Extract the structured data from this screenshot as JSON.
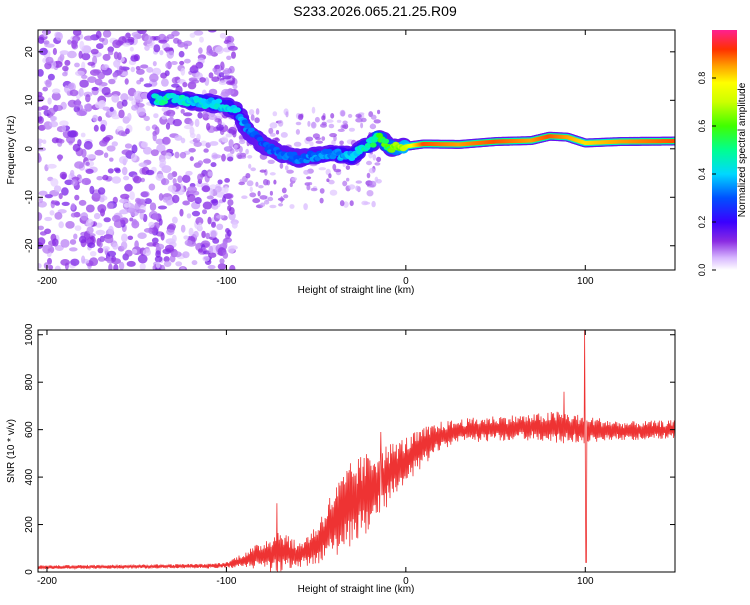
{
  "title": "S233.2026.065.21.25.R09",
  "chart_data": [
    {
      "type": "heatmap",
      "xlabel": "Height of straight line (km)",
      "ylabel": "Frequency (Hz)",
      "xlim": [
        -205,
        150
      ],
      "ylim": [
        -25,
        24.5
      ],
      "xticks": [
        -200,
        -100,
        0,
        100
      ],
      "yticks": [
        -20,
        -10,
        0,
        10,
        20
      ],
      "colorbar": {
        "label": "Normalized spectral amplitude",
        "range": [
          0,
          1
        ],
        "ticks": [
          0.0,
          0.2,
          0.4,
          0.6,
          0.8
        ],
        "tick_labels": [
          "0.0",
          "0.2",
          "0.4",
          "0.6",
          "0.8"
        ]
      },
      "ridge": [
        {
          "x": -140,
          "y": 10.3,
          "a": 0.45
        },
        {
          "x": -130,
          "y": 10.2,
          "a": 0.45
        },
        {
          "x": -118,
          "y": 9.8,
          "a": 0.4
        },
        {
          "x": -105,
          "y": 9.2,
          "a": 0.4
        },
        {
          "x": -95,
          "y": 8.2,
          "a": 0.38
        },
        {
          "x": -88,
          "y": 4.0,
          "a": 0.3
        },
        {
          "x": -80,
          "y": 1.0,
          "a": 0.28
        },
        {
          "x": -70,
          "y": -1.0,
          "a": 0.3
        },
        {
          "x": -60,
          "y": -2.0,
          "a": 0.3
        },
        {
          "x": -50,
          "y": -1.5,
          "a": 0.32
        },
        {
          "x": -40,
          "y": -1.0,
          "a": 0.35
        },
        {
          "x": -30,
          "y": -1.5,
          "a": 0.38
        },
        {
          "x": -20,
          "y": 1.0,
          "a": 0.45
        },
        {
          "x": -15,
          "y": 2.5,
          "a": 0.55
        },
        {
          "x": -10,
          "y": 0.5,
          "a": 0.55
        },
        {
          "x": -5,
          "y": 0.2,
          "a": 0.6
        },
        {
          "x": 0,
          "y": 0.5,
          "a": 0.7
        },
        {
          "x": 10,
          "y": 1.0,
          "a": 0.9
        },
        {
          "x": 30,
          "y": 0.9,
          "a": 0.85
        },
        {
          "x": 50,
          "y": 1.5,
          "a": 0.9
        },
        {
          "x": 70,
          "y": 1.7,
          "a": 0.85
        },
        {
          "x": 80,
          "y": 2.6,
          "a": 0.9
        },
        {
          "x": 90,
          "y": 2.4,
          "a": 0.85
        },
        {
          "x": 100,
          "y": 1.2,
          "a": 0.8
        },
        {
          "x": 120,
          "y": 1.5,
          "a": 0.85
        },
        {
          "x": 150,
          "y": 1.6,
          "a": 0.9
        }
      ]
    },
    {
      "type": "line",
      "xlabel": "Height of straight line (km)",
      "ylabel": "SNR (10 * v/v)",
      "xlim": [
        -205,
        150
      ],
      "ylim": [
        0,
        1020
      ],
      "xticks": [
        -200,
        -100,
        0,
        100
      ],
      "yticks": [
        0,
        200,
        400,
        600,
        800,
        1000
      ],
      "color": "#ee3333",
      "envelope": [
        {
          "x": -205,
          "mean": 20,
          "amp": 8
        },
        {
          "x": -110,
          "mean": 25,
          "amp": 10
        },
        {
          "x": -100,
          "mean": 30,
          "amp": 12
        },
        {
          "x": -80,
          "mean": 70,
          "amp": 60
        },
        {
          "x": -70,
          "mean": 90,
          "amp": 100
        },
        {
          "x": -60,
          "mean": 70,
          "amp": 50
        },
        {
          "x": -50,
          "mean": 110,
          "amp": 90
        },
        {
          "x": -40,
          "mean": 210,
          "amp": 150
        },
        {
          "x": -30,
          "mean": 290,
          "amp": 180
        },
        {
          "x": -20,
          "mean": 340,
          "amp": 170
        },
        {
          "x": -10,
          "mean": 410,
          "amp": 130
        },
        {
          "x": 0,
          "mean": 470,
          "amp": 100
        },
        {
          "x": 10,
          "mean": 530,
          "amp": 80
        },
        {
          "x": 20,
          "mean": 575,
          "amp": 60
        },
        {
          "x": 30,
          "mean": 595,
          "amp": 50
        },
        {
          "x": 50,
          "mean": 605,
          "amp": 55
        },
        {
          "x": 70,
          "mean": 610,
          "amp": 55
        },
        {
          "x": 85,
          "mean": 610,
          "amp": 70
        },
        {
          "x": 100,
          "mean": 600,
          "amp": 60
        },
        {
          "x": 120,
          "mean": 595,
          "amp": 40
        },
        {
          "x": 150,
          "mean": 600,
          "amp": 40
        }
      ],
      "spikes": [
        {
          "x": -72,
          "value": 290
        },
        {
          "x": -14,
          "value": 590
        },
        {
          "x": 88,
          "value": 760
        },
        {
          "x": 99.6,
          "value": 1020
        },
        {
          "x": 100.4,
          "value": 40
        }
      ]
    }
  ]
}
